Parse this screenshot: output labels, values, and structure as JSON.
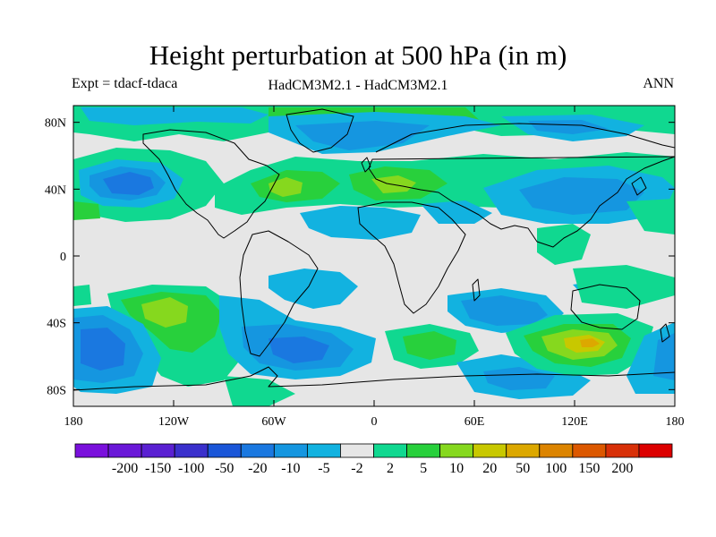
{
  "title": "Height perturbation at 500 hPa (in m)",
  "subtitle_left": "Expt = tdacf-tdaca",
  "subtitle_center": "HadCM3M2.1 - HadCM3M2.1",
  "subtitle_right": "ANN",
  "lat_ticks": [
    {
      "value": 80,
      "label": "80N"
    },
    {
      "value": 40,
      "label": "40N"
    },
    {
      "value": 0,
      "label": "0"
    },
    {
      "value": -40,
      "label": "40S"
    },
    {
      "value": -80,
      "label": "80S"
    }
  ],
  "lon_ticks": [
    {
      "value": -180,
      "label": "180"
    },
    {
      "value": -120,
      "label": "120W"
    },
    {
      "value": -60,
      "label": "60W"
    },
    {
      "value": 0,
      "label": "0"
    },
    {
      "value": 60,
      "label": "60E"
    },
    {
      "value": 120,
      "label": "120E"
    },
    {
      "value": 180,
      "label": "180"
    }
  ],
  "colorbar": {
    "colors": [
      "#7a10dc",
      "#6a18d8",
      "#5a20d2",
      "#3a30cc",
      "#1a56d8",
      "#1a78e0",
      "#1596e0",
      "#12b2e0",
      "#e6e6e6",
      "#10d890",
      "#28d03c",
      "#86d81e",
      "#c8c800",
      "#dca800",
      "#dc8400",
      "#dc5800",
      "#d83008",
      "#dc0000"
    ],
    "labels": [
      "-200",
      "-150",
      "-100",
      "-50",
      "-20",
      "-10",
      "-5",
      "-2",
      "2",
      "5",
      "10",
      "20",
      "50",
      "100",
      "150",
      "200"
    ]
  },
  "colors": {
    "neutral": "#e6e6e6",
    "light_blue": "#12b2e0",
    "mid_blue": "#1596e0",
    "blue": "#1a78e0",
    "teal_green": "#10d890",
    "green": "#28d03c",
    "yellow_green": "#86d81e",
    "yellow": "#c8c800",
    "orange": "#dca800"
  },
  "field": {
    "background_level": "2 to -2",
    "features": [
      {
        "lon": -140,
        "lat": 44,
        "level": "-20 to -50"
      },
      {
        "lon": -40,
        "lat": 70,
        "level": "-10 to -20"
      },
      {
        "lon": -48,
        "lat": -57,
        "level": "-10 to -20"
      },
      {
        "lon": -170,
        "lat": -55,
        "level": "-10 to -20"
      },
      {
        "lon": -73,
        "lat": 39,
        "level": "20 to 50"
      },
      {
        "lon": 10,
        "lat": 43,
        "level": "10 to 20"
      },
      {
        "lon": -118,
        "lat": -34,
        "level": "20 to 50"
      },
      {
        "lon": 128,
        "lat": -53,
        "level": "50 to 100"
      },
      {
        "lon": 140,
        "lat": 38,
        "level": "-5 to -10"
      }
    ]
  }
}
